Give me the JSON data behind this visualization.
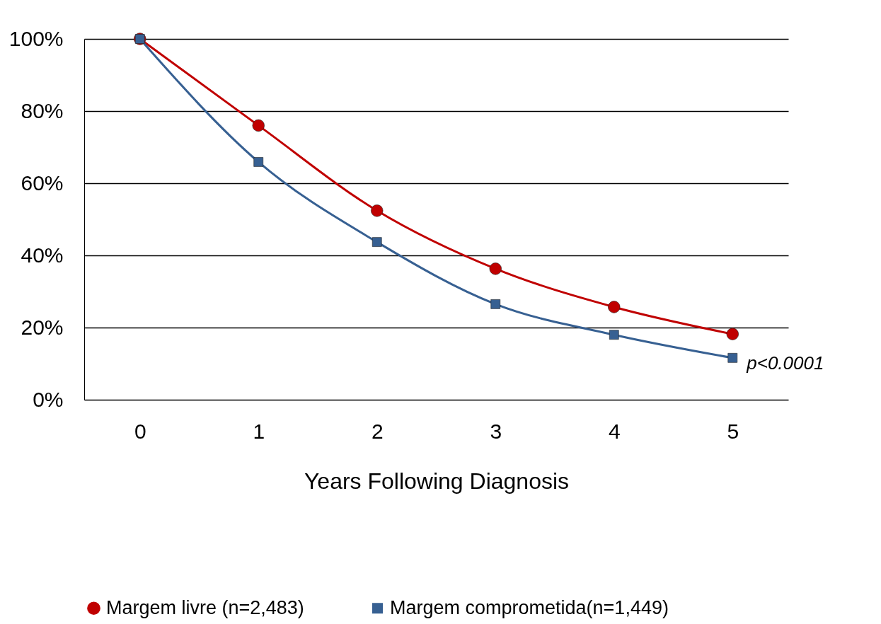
{
  "chart_data": {
    "type": "line",
    "xlabel": "Years Following Diagnosis",
    "categories": [
      "0",
      "1",
      "2",
      "3",
      "4",
      "5"
    ],
    "series": [
      {
        "name": "Margem livre (n=2,483)",
        "color": "#c00000",
        "marker": "circle",
        "values": [
          100,
          76,
          52.4,
          36.3,
          25.7,
          18.2
        ]
      },
      {
        "name": "Margem comprometida(n=1,449)",
        "color": "#376092",
        "marker": "square",
        "values": [
          100,
          65.9,
          43.7,
          26.5,
          18,
          11.6
        ]
      }
    ],
    "ylim": [
      0,
      100
    ],
    "yticks": [
      {
        "value": 0,
        "label": "0%"
      },
      {
        "value": 20,
        "label": "20%"
      },
      {
        "value": 40,
        "label": "40%"
      },
      {
        "value": 60,
        "label": "60%"
      },
      {
        "value": 80,
        "label": "80%"
      },
      {
        "value": 100,
        "label": "100%"
      }
    ],
    "grid": "y",
    "legend": "bottom",
    "line_style": "solid",
    "annotations": [
      {
        "text": "p<0.0001",
        "x": "5",
        "y": 11.6
      }
    ]
  }
}
